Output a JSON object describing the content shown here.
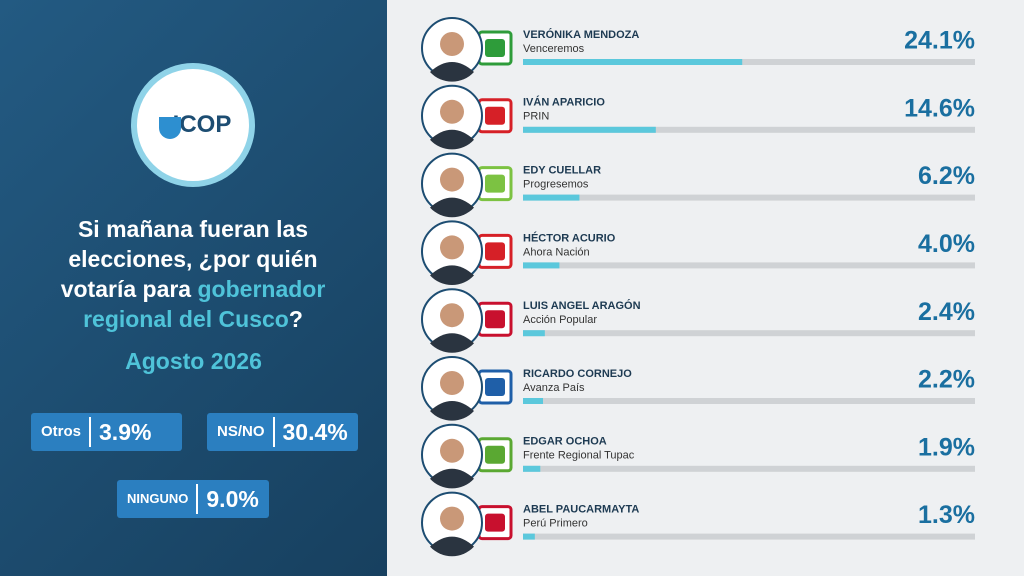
{
  "header": {
    "logo_text": "ICOP",
    "question_parts": [
      "Si mañana fueran las elecciones, ¿por quién votaría para ",
      "gobernador regional del Cusco",
      "?"
    ],
    "date": "Agosto 2026"
  },
  "summary": [
    {
      "label": "Otros",
      "value": "3.9%"
    },
    {
      "label": "NS/NO",
      "value": "30.4%"
    },
    {
      "label": "NINGUNO",
      "value": "9.0%"
    }
  ],
  "chart_data": {
    "type": "bar",
    "orientation": "horizontal",
    "categories": [
      "VERÓNIKA MENDOZA",
      "IVÁN APARICIO",
      "EDY CUELLAR",
      "HÉCTOR ACURIO",
      "LUIS ANGEL ARAGÓN",
      "RICARDO CORNEJO",
      "EDGAR OCHOA",
      "ABEL PAUCARMAYTA"
    ],
    "parties": [
      "Venceremos",
      "PRIN",
      "Progresemos",
      "Ahora Nación",
      "Acción Popular",
      "Avanza País",
      "Frente Regional Tupac",
      "Perú Primero"
    ],
    "values": [
      24.1,
      14.6,
      6.2,
      4.0,
      2.4,
      2.2,
      1.9,
      1.3
    ],
    "value_labels": [
      "24.1%",
      "14.6%",
      "6.2%",
      "4.0%",
      "2.4%",
      "2.2%",
      "1.9%",
      "1.3%"
    ],
    "color": "#5bc8dc",
    "track_color": "#cfd2d5"
  }
}
